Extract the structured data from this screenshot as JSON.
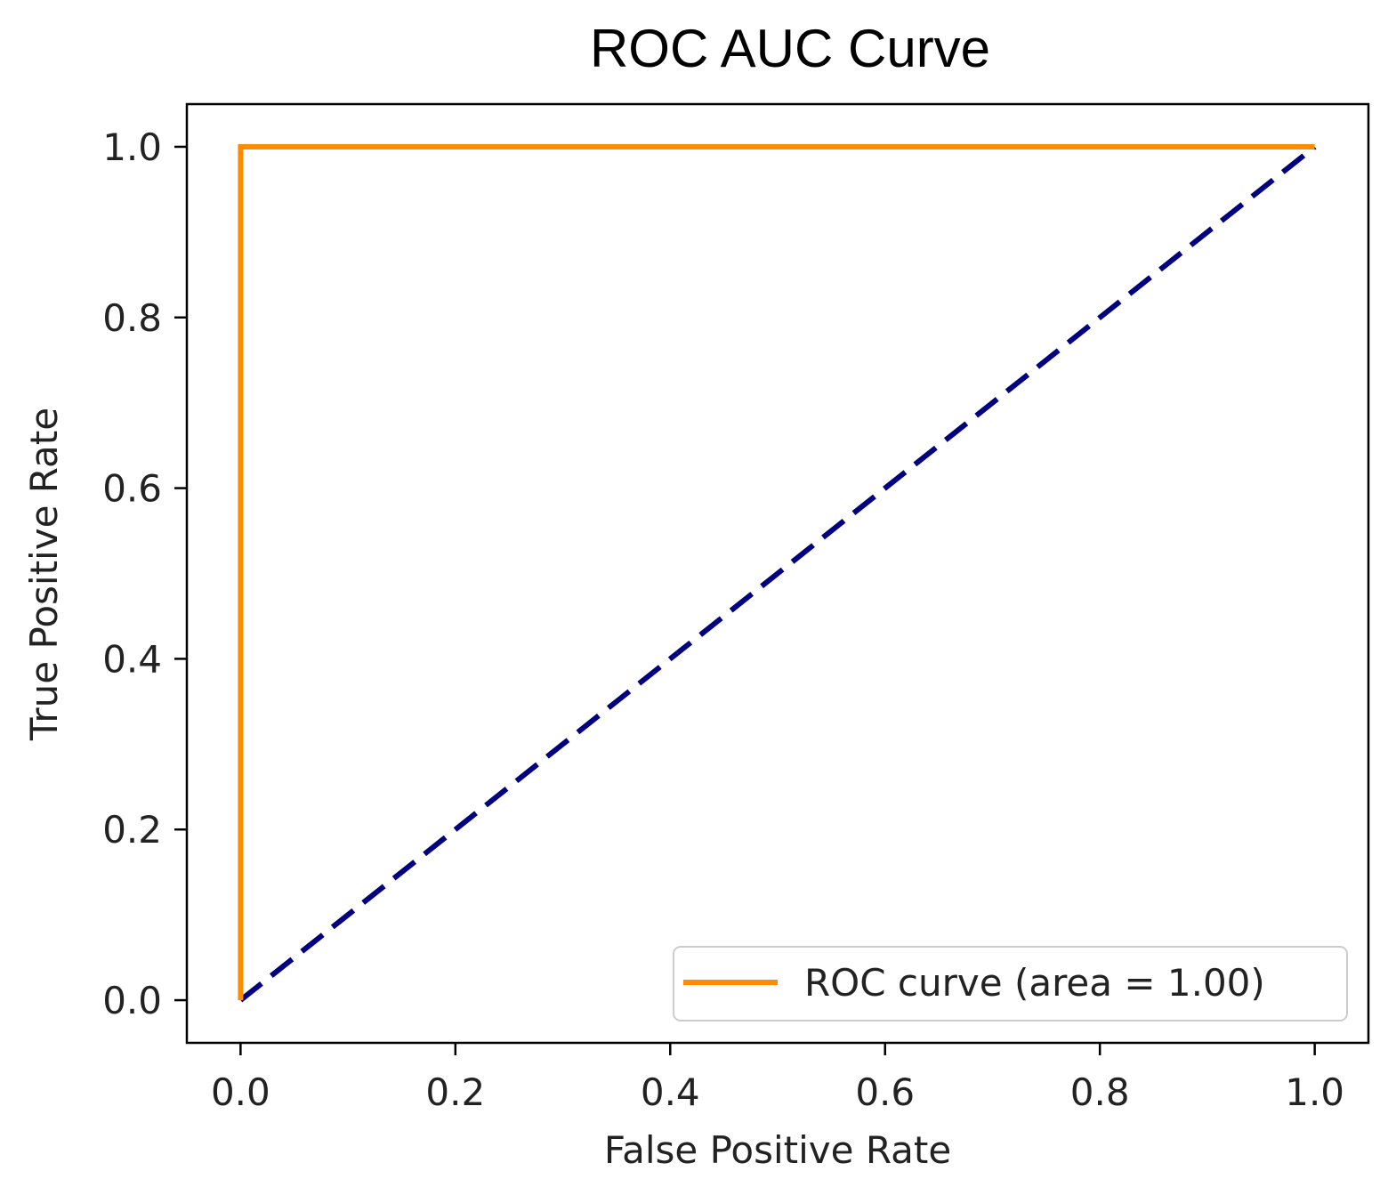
{
  "chart_data": {
    "type": "line",
    "title": "ROC AUC Curve",
    "xlabel": "False Positive Rate",
    "ylabel": "True Positive Rate",
    "xlim": [
      -0.05,
      1.05
    ],
    "ylim": [
      -0.05,
      1.05
    ],
    "xticks": [
      "0.0",
      "0.2",
      "0.4",
      "0.6",
      "0.8",
      "1.0"
    ],
    "yticks": [
      "0.0",
      "0.2",
      "0.4",
      "0.6",
      "0.8",
      "1.0"
    ],
    "grid": false,
    "legend_position": "lower-right",
    "series": [
      {
        "name": "ROC curve (area = 1.00)",
        "color": "#ff8c00",
        "style": "solid",
        "x": [
          0.0,
          0.0,
          1.0
        ],
        "y": [
          0.0,
          1.0,
          1.0
        ]
      },
      {
        "color": "#000080",
        "style": "dashed",
        "x": [
          0.0,
          1.0
        ],
        "y": [
          0.0,
          1.0
        ]
      }
    ]
  }
}
